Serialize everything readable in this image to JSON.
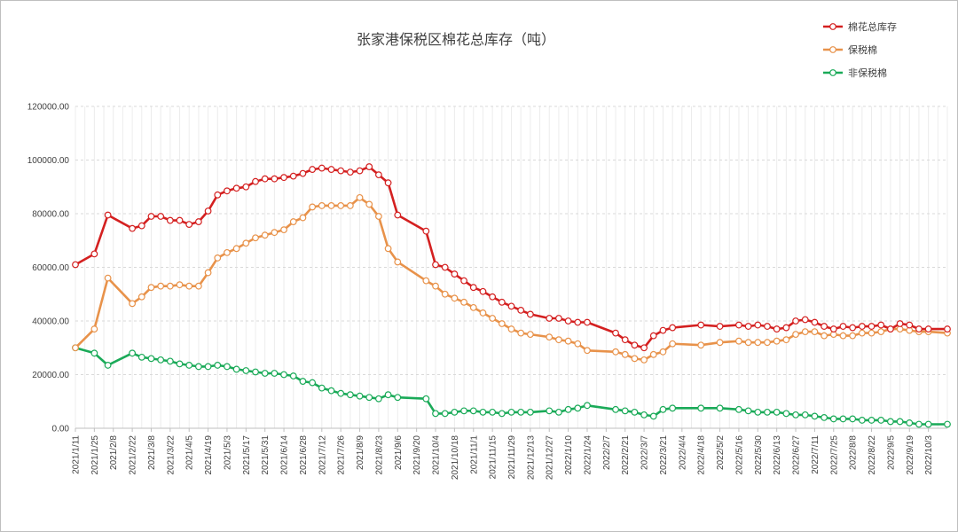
{
  "chart_data": {
    "type": "line",
    "title": "张家港保税区棉花总库存（吨）",
    "xlabel": "",
    "ylabel": "",
    "ylim": [
      0,
      120000
    ],
    "yticks": [
      "0.00",
      "20000.00",
      "40000.00",
      "60000.00",
      "80000.00",
      "100000.00",
      "120000.00"
    ],
    "grid": true,
    "legend_position": "top-right",
    "x_tick_labels": [
      "2021/1/11",
      "2021/1/25",
      "2021/2/8",
      "2021/2/22",
      "2021/3/8",
      "2021/3/22",
      "2021/4/5",
      "2021/4/19",
      "2021/5/3",
      "2021/5/17",
      "2021/5/31",
      "2021/6/14",
      "2021/6/28",
      "2021/7/12",
      "2021/7/26",
      "2021/8/9",
      "2021/8/23",
      "2021/9/6",
      "2021/9/20",
      "2021/10/4",
      "2021/10/18",
      "2021/11/1",
      "2021/11/15",
      "2021/11/29",
      "2021/12/13",
      "2021/12/27",
      "2022/1/10",
      "2022/1/24",
      "2022/2/7",
      "2022/2/21",
      "2022/3/7",
      "2022/3/21",
      "2022/4/4",
      "2022/4/18",
      "2022/5/2",
      "2022/5/16",
      "2022/5/30",
      "2022/6/13",
      "2022/6/27",
      "2022/7/11",
      "2022/7/25",
      "2022/8/8",
      "2022/8/22",
      "2022/9/5",
      "2022/9/19",
      "2022/10/3"
    ],
    "x": [
      "2021-01-11",
      "2021-01-25",
      "2021-02-04",
      "2021-02-22",
      "2021-03-01",
      "2021-03-08",
      "2021-03-15",
      "2021-03-22",
      "2021-03-29",
      "2021-04-05",
      "2021-04-12",
      "2021-04-19",
      "2021-04-26",
      "2021-05-03",
      "2021-05-10",
      "2021-05-17",
      "2021-05-24",
      "2021-05-31",
      "2021-06-07",
      "2021-06-14",
      "2021-06-21",
      "2021-06-28",
      "2021-07-05",
      "2021-07-12",
      "2021-07-19",
      "2021-07-26",
      "2021-08-02",
      "2021-08-09",
      "2021-08-16",
      "2021-08-23",
      "2021-08-30",
      "2021-09-06",
      "2021-09-27",
      "2021-10-04",
      "2021-10-11",
      "2021-10-18",
      "2021-10-25",
      "2021-11-01",
      "2021-11-08",
      "2021-11-15",
      "2021-11-22",
      "2021-11-29",
      "2021-12-06",
      "2021-12-13",
      "2021-12-27",
      "2022-01-03",
      "2022-01-10",
      "2022-01-17",
      "2022-01-24",
      "2022-02-14",
      "2022-02-21",
      "2022-02-28",
      "2022-03-07",
      "2022-03-14",
      "2022-03-21",
      "2022-03-28",
      "2022-04-18",
      "2022-05-02",
      "2022-05-16",
      "2022-05-23",
      "2022-05-30",
      "2022-06-06",
      "2022-06-13",
      "2022-06-20",
      "2022-06-27",
      "2022-07-04",
      "2022-07-11",
      "2022-07-18",
      "2022-07-25",
      "2022-08-01",
      "2022-08-08",
      "2022-08-15",
      "2022-08-22",
      "2022-08-29",
      "2022-09-05",
      "2022-09-12",
      "2022-09-19",
      "2022-09-26",
      "2022-10-03",
      "2022-10-17"
    ],
    "series": [
      {
        "name": "棉花总库存",
        "color": "#d42020",
        "values": [
          61000,
          65000,
          79500,
          74500,
          75500,
          79000,
          79000,
          77500,
          77500,
          76000,
          77000,
          81000,
          87000,
          88500,
          89500,
          90000,
          92000,
          93000,
          93000,
          93500,
          94000,
          95000,
          96500,
          97000,
          96500,
          96000,
          95500,
          96000,
          97500,
          94500,
          91500,
          79500,
          73500,
          61000,
          60000,
          57500,
          55000,
          52500,
          51000,
          49000,
          47000,
          45500,
          44000,
          42500,
          41000,
          41000,
          40000,
          39500,
          39500,
          35500,
          33000,
          31000,
          30000,
          34500,
          36500,
          37500,
          38500,
          38000,
          38500,
          38000,
          38500,
          38000,
          37000,
          37500,
          40000,
          40500,
          39500,
          38000,
          37000,
          38000,
          37500,
          38000,
          38000,
          38500,
          37000,
          39000,
          38500,
          37000,
          37000,
          37000
        ],
        "series_is_top": true
      },
      {
        "name": "保税棉",
        "color": "#e8924a",
        "values": [
          30000,
          37000,
          56000,
          46500,
          49000,
          52500,
          53000,
          53000,
          53500,
          53000,
          53000,
          58000,
          63500,
          65500,
          67000,
          69000,
          71000,
          72000,
          73000,
          74000,
          77000,
          78500,
          82500,
          83000,
          83000,
          83000,
          83000,
          86000,
          83500,
          79000,
          67000,
          62000,
          55000,
          53000,
          50000,
          48500,
          47000,
          45000,
          43000,
          41000,
          39000,
          37000,
          35500,
          35000,
          34000,
          33000,
          32500,
          31500,
          29000,
          28500,
          27500,
          26000,
          25500,
          27500,
          28500,
          31500,
          31000,
          32000,
          32500,
          32000,
          32000,
          32000,
          32500,
          33000,
          35000,
          36000,
          36000,
          34500,
          35000,
          34500,
          34500,
          35500,
          35500,
          36000,
          37000,
          37000,
          36500,
          36000,
          36000,
          35500
        ]
      },
      {
        "name": "非保税棉",
        "color": "#1aaa58",
        "values": [
          30000,
          28000,
          23500,
          28000,
          26500,
          26000,
          25500,
          25000,
          24000,
          23500,
          23000,
          23000,
          23500,
          23000,
          22000,
          21500,
          21000,
          20500,
          20500,
          20000,
          19500,
          17500,
          17000,
          15000,
          14000,
          13000,
          12500,
          12000,
          11500,
          11000,
          12500,
          11500,
          11000,
          5500,
          5500,
          6000,
          6500,
          6500,
          6000,
          6000,
          5500,
          6000,
          6000,
          6000,
          6500,
          6000,
          7000,
          7500,
          8500,
          7000,
          6500,
          6000,
          5000,
          4500,
          7000,
          7500,
          7500,
          7500,
          7000,
          6500,
          6000,
          6000,
          6000,
          5500,
          5000,
          5000,
          4500,
          4000,
          3500,
          3500,
          3500,
          3000,
          3000,
          3000,
          2500,
          2500,
          2000,
          1500,
          1500,
          1500
        ]
      }
    ]
  }
}
